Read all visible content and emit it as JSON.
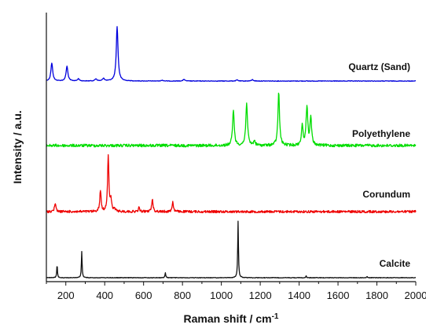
{
  "chart_data": {
    "type": "line",
    "title": "",
    "xlabel": "Raman shift / cm",
    "xlabel_superscript": "-1",
    "ylabel": "Intensity / a.u.",
    "xlim": [
      100,
      2000
    ],
    "xticks": [
      "200",
      "400",
      "600",
      "800",
      "1000",
      "1200",
      "1400",
      "1600",
      "1800",
      "2000"
    ],
    "yticks_shown": false,
    "grid": false,
    "legend": "none",
    "series": [
      {
        "name": "Quartz (Sand)",
        "color": "#0000dd",
        "peaks": [
          [
            128,
            0.33
          ],
          [
            206,
            0.27
          ],
          [
            265,
            0.04
          ],
          [
            355,
            0.04
          ],
          [
            394,
            0.05
          ],
          [
            464,
            1.0
          ],
          [
            696,
            0.015
          ],
          [
            808,
            0.03
          ],
          [
            1081,
            0.02
          ],
          [
            1160,
            0.025
          ]
        ]
      },
      {
        "name": "Polyethylene",
        "color": "#00dd00",
        "peaks": [
          [
            1062,
            0.63
          ],
          [
            1130,
            0.76
          ],
          [
            1170,
            0.08
          ],
          [
            1295,
            0.94
          ],
          [
            1416,
            0.34
          ],
          [
            1440,
            0.68
          ],
          [
            1460,
            0.48
          ]
        ]
      },
      {
        "name": "Corundum",
        "color": "#ee0000",
        "peaks": [
          [
            145,
            0.15
          ],
          [
            378,
            0.37
          ],
          [
            418,
            0.98
          ],
          [
            432,
            0.2
          ],
          [
            451,
            0.05
          ],
          [
            577,
            0.07
          ],
          [
            645,
            0.22
          ],
          [
            750,
            0.17
          ]
        ]
      },
      {
        "name": "Calcite",
        "color": "#111111",
        "peaks": [
          [
            155,
            0.23
          ],
          [
            282,
            0.46
          ],
          [
            712,
            0.09
          ],
          [
            1086,
            1.0
          ],
          [
            1436,
            0.03
          ],
          [
            1749,
            0.02
          ]
        ]
      }
    ]
  }
}
